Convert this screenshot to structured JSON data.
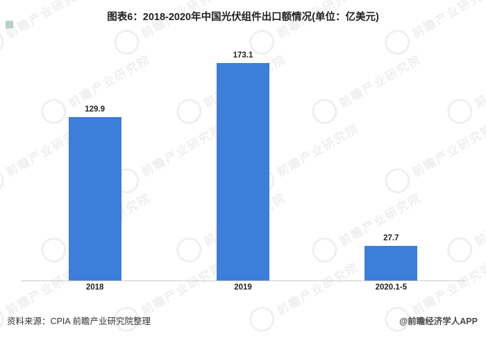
{
  "title": "图表6：2018-2020年中国光伏组件出口额情况(单位：亿美元)",
  "chart_data": {
    "type": "bar",
    "categories": [
      "2018",
      "2019",
      "2020.1-5"
    ],
    "values": [
      129.9,
      173.1,
      27.7
    ],
    "title": "图表6：2018-2020年中国光伏组件出口额情况(单位：亿美元)",
    "xlabel": "",
    "ylabel": "",
    "ylim": [
      0,
      190
    ],
    "grid": false,
    "legend": false,
    "bar_color": "#3d7edb",
    "data_labels": true
  },
  "footer": {
    "source": "资料来源：CPIA 前瞻产业研究院整理",
    "credit": "@前瞻经济学人APP"
  },
  "watermark": {
    "text": "前瞻产业研究院"
  }
}
